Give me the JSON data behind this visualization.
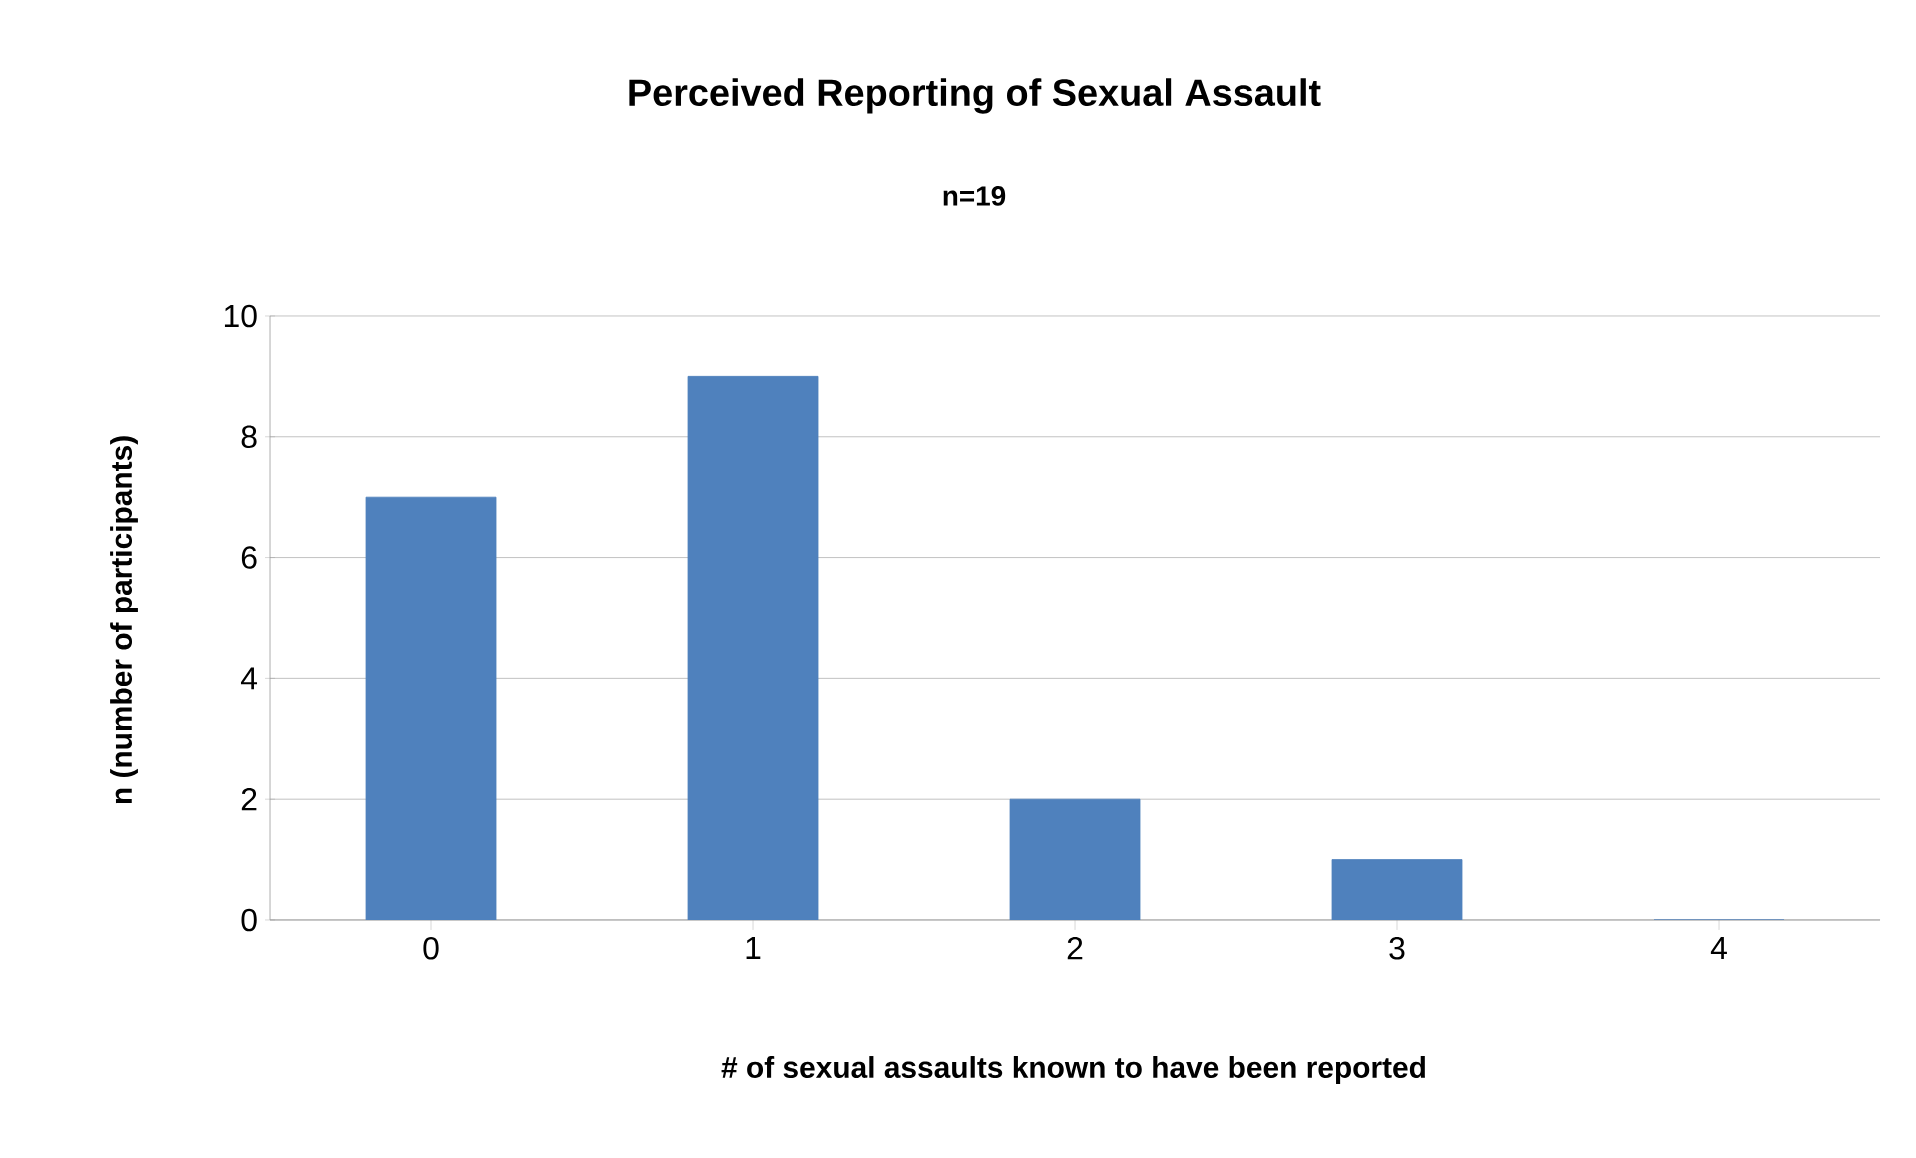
{
  "chart_data": {
    "type": "bar",
    "title": "Perceived Reporting of Sexual Assault",
    "subtitle": "n=19",
    "xlabel": "# of sexual assaults  known to have been reported",
    "ylabel": "n (number of participants)",
    "categories": [
      "0",
      "1",
      "2",
      "3",
      "4"
    ],
    "values": [
      7,
      9,
      2,
      1,
      0
    ],
    "color": "#4f81bd",
    "ylim": [
      0,
      10
    ],
    "yticks": [
      0,
      2,
      4,
      6,
      8,
      10
    ],
    "grid": "y"
  }
}
